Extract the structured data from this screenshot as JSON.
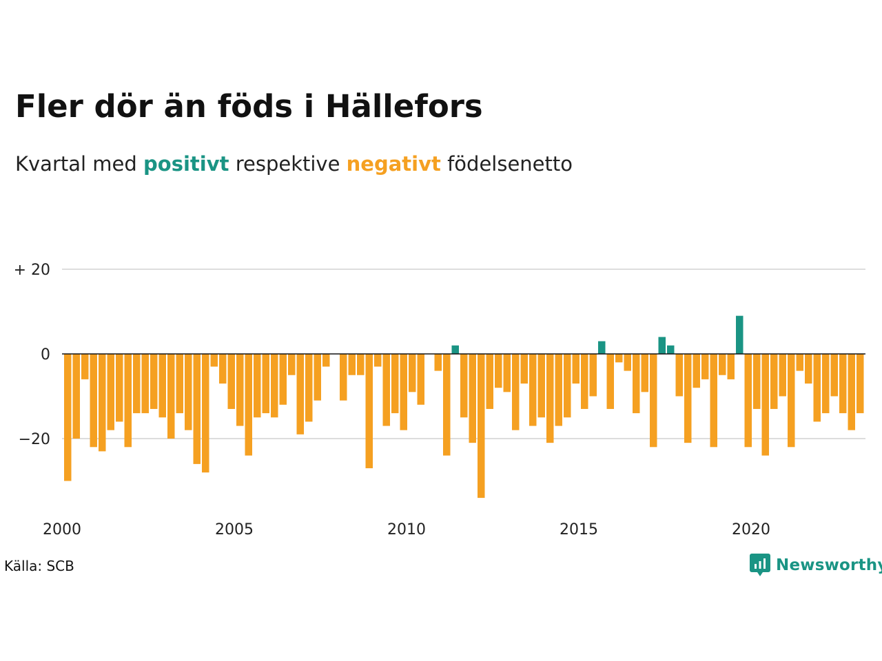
{
  "title": "Fler dör än föds i Hällefors",
  "subtitle": {
    "prefix": "Kvartal med ",
    "positive_word": "positivt",
    "middle": " respektive ",
    "negative_word": "negativt",
    "suffix": " födelsenetto"
  },
  "source": "Källa: SCB",
  "brand": {
    "name": "Newsworthy",
    "icon": "newsworthy-logo-icon"
  },
  "colors": {
    "positive": "#1a9484",
    "negative": "#f5a021",
    "grid": "#dddddd",
    "text": "#111111"
  },
  "chart_data": {
    "type": "bar",
    "x_start_year": 2000,
    "periods_per_year": 4,
    "x_ticks": [
      "2000",
      "2005",
      "2010",
      "2015",
      "2020"
    ],
    "y_ticks": [
      {
        "value": 20,
        "label": "+ 20"
      },
      {
        "value": 0,
        "label": "0"
      },
      {
        "value": -20,
        "label": "−20"
      }
    ],
    "ylim": [
      -37,
      21
    ],
    "grid": true,
    "values": [
      -30,
      -20,
      -6,
      -22,
      -23,
      -18,
      -16,
      -22,
      -14,
      -14,
      -13,
      -15,
      -20,
      -14,
      -18,
      -26,
      -28,
      -3,
      -7,
      -13,
      -17,
      -24,
      -15,
      -14,
      -15,
      -12,
      -5,
      -19,
      -16,
      -11,
      -3,
      0,
      -11,
      -5,
      -5,
      -27,
      -3,
      -17,
      -14,
      -18,
      -9,
      -12,
      0,
      -4,
      -24,
      2,
      -15,
      -21,
      -34,
      -13,
      -8,
      -9,
      -18,
      -7,
      -17,
      -15,
      -21,
      -17,
      -15,
      -7,
      -13,
      -10,
      3,
      -13,
      -2,
      -4,
      -14,
      -9,
      -22,
      4,
      2,
      -10,
      -21,
      -8,
      -6,
      -22,
      -5,
      -6,
      9,
      -22,
      -13,
      -24,
      -13,
      -10,
      -22,
      -4,
      -7,
      -16,
      -14,
      -10,
      -14,
      -18,
      -14
    ]
  }
}
